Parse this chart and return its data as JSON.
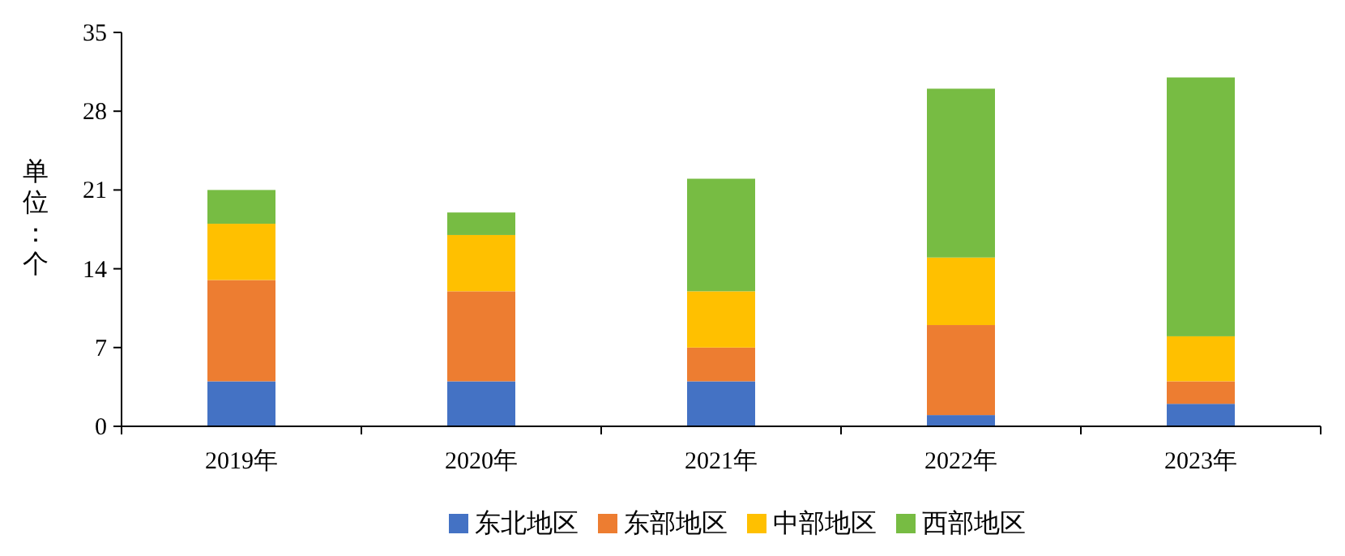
{
  "chart_data": {
    "type": "bar",
    "stacked": true,
    "ylabel": "单位：个",
    "categories": [
      "2019年",
      "2020年",
      "2021年",
      "2022年",
      "2023年"
    ],
    "series": [
      {
        "name": "东北地区",
        "color": "#4472c4",
        "values": [
          4,
          4,
          4,
          1,
          2
        ]
      },
      {
        "name": "东部地区",
        "color": "#ed7d31",
        "values": [
          9,
          8,
          3,
          8,
          2
        ]
      },
      {
        "name": "中部地区",
        "color": "#ffc000",
        "values": [
          5,
          5,
          5,
          6,
          4
        ]
      },
      {
        "name": "西部地区",
        "color": "#77bc43",
        "values": [
          3,
          2,
          10,
          15,
          23
        ]
      }
    ],
    "ylim": [
      0,
      35
    ],
    "yticks": [
      0,
      7,
      14,
      21,
      28,
      35
    ],
    "grid": false,
    "legend": "bottom"
  }
}
